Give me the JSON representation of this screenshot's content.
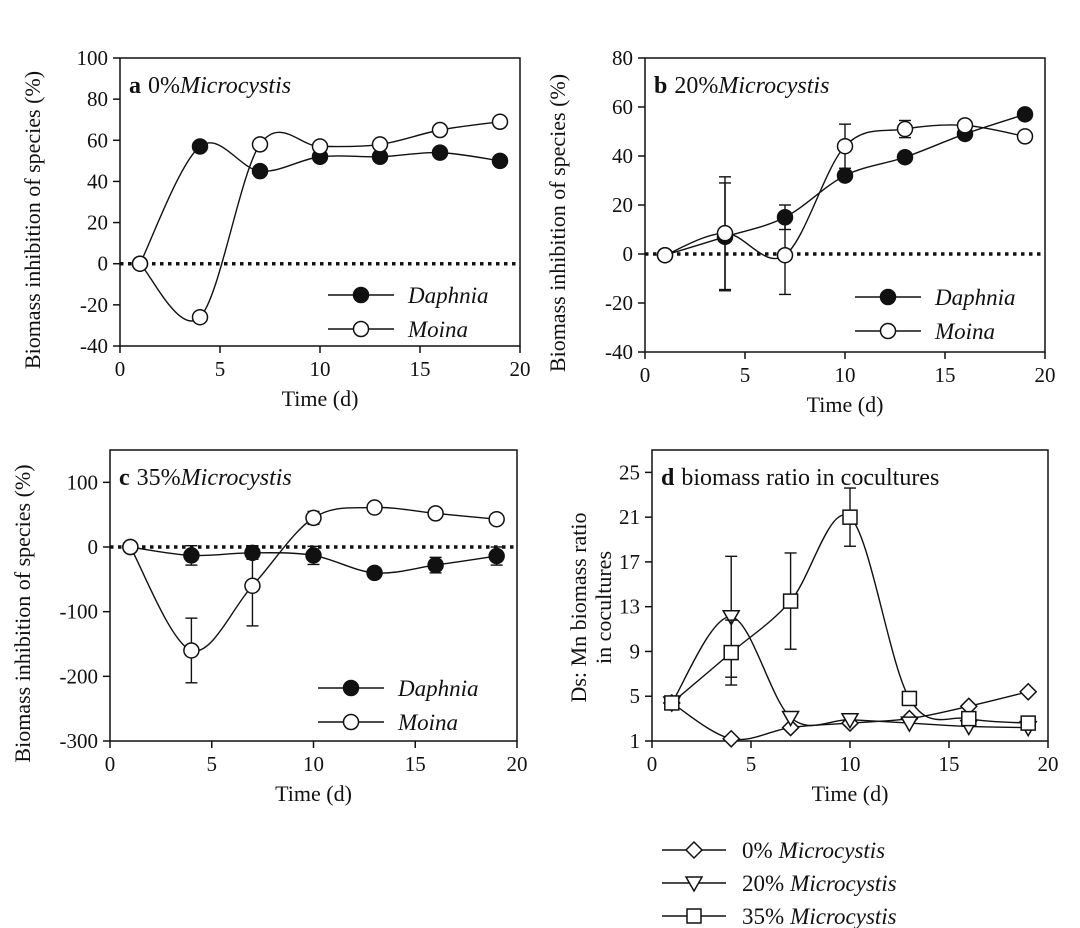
{
  "chart_data": [
    {
      "type": "line",
      "panel_letter": "a",
      "title": "0%",
      "title_italic": "Microcystis",
      "xlabel": "Time (d)",
      "ylabel": "Biomass inhibition of species (%)",
      "xlim": [
        0,
        20
      ],
      "ylim": [
        -40,
        100
      ],
      "xticks": [
        0,
        5,
        10,
        15,
        20
      ],
      "yticks": [
        -40,
        -20,
        0,
        20,
        40,
        60,
        80,
        100
      ],
      "reference_line": 0,
      "legend_position": "bottom-right",
      "series": [
        {
          "name": "Daphnia",
          "marker": "filled-circle",
          "x": [
            1,
            4,
            7,
            10,
            13,
            16,
            19
          ],
          "y": [
            0,
            57,
            45,
            52,
            52,
            54,
            50
          ]
        },
        {
          "name": "Moina",
          "marker": "open-circle",
          "x": [
            1,
            4,
            7,
            10,
            13,
            16,
            19
          ],
          "y": [
            0,
            -26,
            58,
            57,
            58,
            65,
            69
          ]
        }
      ]
    },
    {
      "type": "line",
      "panel_letter": "b",
      "title": "20%",
      "title_italic": "Microcystis",
      "xlabel": "Time (d)",
      "ylabel": "Biomass inhibition of species (%)",
      "xlim": [
        0,
        20
      ],
      "ylim": [
        -40,
        80
      ],
      "xticks": [
        0,
        5,
        10,
        15,
        20
      ],
      "yticks": [
        -40,
        -20,
        0,
        20,
        40,
        60,
        80
      ],
      "reference_line": 0,
      "legend_position": "bottom-right",
      "series": [
        {
          "name": "Daphnia",
          "marker": "filled-circle",
          "x": [
            1,
            4,
            7,
            10,
            13,
            16,
            19
          ],
          "y": [
            -0.5,
            7,
            15,
            32,
            39.5,
            49,
            57
          ],
          "err": [
            0,
            22,
            5,
            0,
            0,
            0,
            0
          ]
        },
        {
          "name": "Moina",
          "marker": "open-circle",
          "x": [
            1,
            4,
            7,
            10,
            13,
            16,
            19
          ],
          "y": [
            -0.5,
            8.5,
            -0.5,
            44,
            51,
            52.5,
            48
          ],
          "err": [
            0,
            23,
            16,
            9,
            3.5,
            1.5,
            0
          ]
        }
      ]
    },
    {
      "type": "line",
      "panel_letter": "c",
      "title": "35%",
      "title_italic": "Microcystis",
      "xlabel": "Time (d)",
      "ylabel": "Biomass inhibition of species (%)",
      "xlim": [
        0,
        20
      ],
      "ylim": [
        -300,
        150
      ],
      "xticks": [
        0,
        5,
        10,
        15,
        20
      ],
      "yticks": [
        -300,
        -200,
        -100,
        0,
        100
      ],
      "reference_line": 0,
      "legend_position": "bottom-right",
      "series": [
        {
          "name": "Daphnia",
          "marker": "filled-circle",
          "x": [
            1,
            4,
            7,
            10,
            13,
            16,
            19
          ],
          "y": [
            0,
            -13,
            -9,
            -13,
            -40,
            -28,
            -14
          ],
          "err": [
            0,
            15,
            10,
            14,
            0,
            12,
            14
          ]
        },
        {
          "name": "Moina",
          "marker": "open-circle",
          "x": [
            1,
            4,
            7,
            10,
            13,
            16,
            19
          ],
          "y": [
            0,
            -160,
            -60,
            45,
            61,
            52,
            43
          ],
          "err": [
            0,
            50,
            62,
            10,
            0,
            0,
            0
          ]
        }
      ]
    },
    {
      "type": "line",
      "panel_letter": "d",
      "title": "biomass ratio in cocultures",
      "xlabel": "Time (d)",
      "ylabel_line1": "Ds: Mn biomass ratio",
      "ylabel_line2": "in cocultures",
      "xlim": [
        0,
        20
      ],
      "ylim": [
        1,
        27
      ],
      "xticks": [
        0,
        5,
        10,
        15,
        20
      ],
      "yticks": [
        1,
        5,
        9,
        13,
        17,
        21,
        25
      ],
      "legend_position": "below",
      "series": [
        {
          "name_pct": "0%",
          "name_italic": "Microcystis",
          "marker": "open-diamond",
          "x": [
            1,
            4,
            7,
            10,
            13,
            16,
            19
          ],
          "y": [
            4.4,
            1.2,
            2.2,
            2.6,
            3.0,
            4.1,
            5.4
          ]
        },
        {
          "name_pct": "20%",
          "name_italic": "Microcystis",
          "marker": "open-triangle-down",
          "x": [
            1,
            4,
            7,
            10,
            13,
            16,
            19
          ],
          "y": [
            4.4,
            12.1,
            3.1,
            2.9,
            2.6,
            2.3,
            2.2
          ],
          "err": [
            0,
            5.4,
            0,
            0,
            0,
            0,
            0
          ]
        },
        {
          "name_pct": "35%",
          "name_italic": "Microcystis",
          "marker": "open-square",
          "x": [
            1,
            4,
            7,
            10,
            13,
            16,
            19
          ],
          "y": [
            4.4,
            8.9,
            13.5,
            21.0,
            4.8,
            3.0,
            2.6
          ],
          "err": [
            0,
            2.9,
            4.3,
            2.6,
            0,
            0,
            0
          ]
        }
      ]
    }
  ]
}
